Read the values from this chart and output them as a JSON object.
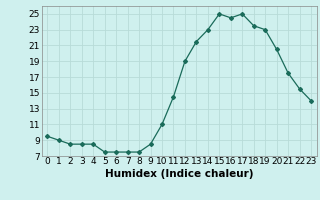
{
  "x": [
    0,
    1,
    2,
    3,
    4,
    5,
    6,
    7,
    8,
    9,
    10,
    11,
    12,
    13,
    14,
    15,
    16,
    17,
    18,
    19,
    20,
    21,
    22,
    23
  ],
  "y": [
    9.5,
    9.0,
    8.5,
    8.5,
    8.5,
    7.5,
    7.5,
    7.5,
    7.5,
    8.5,
    11.0,
    14.5,
    19.0,
    21.5,
    23.0,
    25.0,
    24.5,
    25.0,
    23.5,
    23.0,
    20.5,
    17.5,
    15.5,
    14.0
  ],
  "xlabel": "Humidex (Indice chaleur)",
  "ylim": [
    7,
    26
  ],
  "xlim": [
    -0.5,
    23.5
  ],
  "yticks": [
    7,
    9,
    11,
    13,
    15,
    17,
    19,
    21,
    23,
    25
  ],
  "xticks": [
    0,
    1,
    2,
    3,
    4,
    5,
    6,
    7,
    8,
    9,
    10,
    11,
    12,
    13,
    14,
    15,
    16,
    17,
    18,
    19,
    20,
    21,
    22,
    23
  ],
  "line_color": "#1a6b5a",
  "marker": "D",
  "marker_size": 2.0,
  "bg_color": "#cff0ee",
  "grid_color": "#b8dbd8",
  "tick_label_fontsize": 6.5,
  "xlabel_fontsize": 7.5
}
